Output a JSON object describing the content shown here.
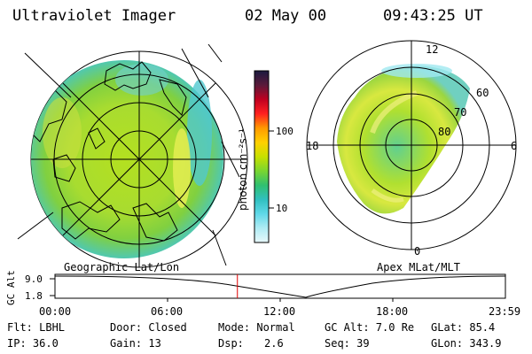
{
  "header": {
    "instrument": "Ultraviolet Imager",
    "date": "02 May 00",
    "time": "09:43:25 UT"
  },
  "colorbar": {
    "unit_label": "photon cm⁻²s⁻¹",
    "ticks": [
      "100",
      "10"
    ],
    "colors": [
      "#1a1a40",
      "#5a1a3a",
      "#c00020",
      "#ff2020",
      "#ff9a00",
      "#ffd000",
      "#c8e000",
      "#7ad630",
      "#30c070",
      "#30c0c0",
      "#60d8e8",
      "#b0ecf4",
      "#e8f8fa"
    ]
  },
  "left_panel": {
    "caption": "Geographic Lat/Lon"
  },
  "right_panel": {
    "caption": "Apex MLat/MLT",
    "mlt_labels": {
      "top": "12",
      "left": "18",
      "right": "6",
      "bottom": "0"
    },
    "lat_labels": [
      "60",
      "70",
      "80"
    ]
  },
  "altitude_plot": {
    "ylabel": "GC Alt",
    "yticks": [
      "9.0",
      "1.8"
    ],
    "xticks": [
      "00:00",
      "06:00",
      "12:00",
      "18:00",
      "23:59"
    ],
    "current_time_fraction": 0.405
  },
  "status": {
    "filter": "Flt: LBHL",
    "ip": "IP: 36.0",
    "door": "Door: Closed",
    "gain": "Gain: 13",
    "mode": "Mode: Normal",
    "dsp_label": "Dsp:",
    "dsp_value": "2.6",
    "gc_alt": "GC Alt: 7.0 Re",
    "seq": "Seq: 39",
    "glat": "GLat: 85.4",
    "glon": "GLon: 343.9"
  }
}
